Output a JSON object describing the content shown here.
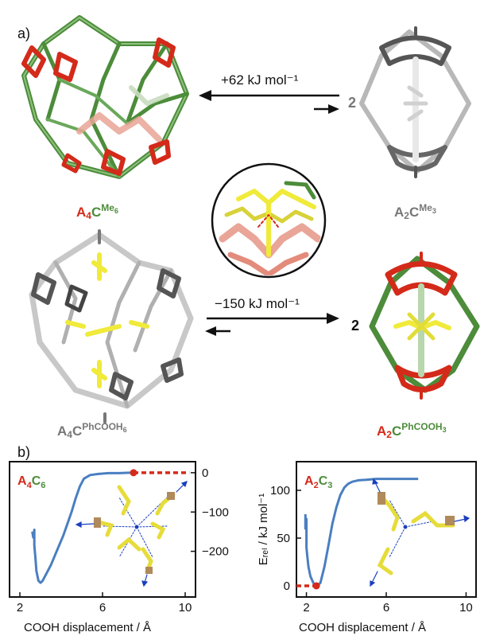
{
  "panel_a": {
    "letter": "a)",
    "reaction_top": {
      "energy": "+62 kJ mol⁻¹",
      "coefficient": "2",
      "left_label": {
        "main_a": "A",
        "main_a_sub": "4",
        "main_c": "C",
        "sup": "Me",
        "sup_sub": "6"
      },
      "right_label": {
        "main_a": "A",
        "main_a_sub": "2",
        "main_c": "C",
        "sup": "Me",
        "sup_sub": "3"
      }
    },
    "reaction_bottom": {
      "energy": "−150 kJ mol⁻¹",
      "coefficient": "2",
      "left_label": {
        "main_a": "A",
        "main_a_sub": "4",
        "main_c": "C",
        "sup": "PhCOOH",
        "sup_sub": "6"
      },
      "right_label": {
        "main_a": "A",
        "main_a_sub": "2",
        "main_c": "C",
        "sup": "PhCOOH",
        "sup_sub": "3"
      }
    }
  },
  "panel_b": {
    "letter": "b)",
    "colors": {
      "curve": "#4a7fc1",
      "reference": "#d42a1a",
      "green": "#4c8c3a",
      "red": "#d42a1a",
      "yellow": "#f0ea3a",
      "gray": "#777777"
    },
    "shared_ylabel": "Eᵣₑₗ / kJ mol⁻¹"
  },
  "chart_data": [
    {
      "type": "line",
      "tag": {
        "a": "A",
        "a_sub": "4",
        "c": "C",
        "c_sub": "6"
      },
      "xlabel": "COOH displacement / Å",
      "ylabel": "",
      "xlim": [
        1.5,
        10.5
      ],
      "ylim": [
        -300,
        20
      ],
      "xticks": [
        "2",
        "6",
        "10"
      ],
      "yticks": [
        "0",
        "−100",
        "−200"
      ],
      "y_axis_side": "right",
      "series": [
        {
          "x": [
            2.6,
            2.65,
            2.7,
            2.7,
            2.75,
            2.8,
            2.9,
            3.0,
            3.1,
            3.3,
            3.5,
            3.7,
            3.9,
            4.1,
            4.3,
            4.5,
            4.7,
            4.9,
            5.1,
            5.4,
            5.8,
            6.3,
            6.8,
            7.3,
            7.5
          ],
          "y": [
            -150,
            -165,
            -145,
            -185,
            -215,
            -250,
            -275,
            -280,
            -275,
            -255,
            -235,
            -210,
            -185,
            -160,
            -130,
            -100,
            -65,
            -35,
            -15,
            -6,
            -3,
            -1,
            -1,
            0,
            0
          ]
        }
      ],
      "reference": {
        "x": [
          7.5,
          10.2
        ],
        "y": [
          0,
          0
        ],
        "marker": "point at start"
      }
    },
    {
      "type": "line",
      "tag": {
        "a": "A",
        "a_sub": "2",
        "c": "C",
        "c_sub": "3"
      },
      "xlabel": "COOH displacement / Å",
      "ylabel": "Eᵣₑₗ / kJ mol⁻¹",
      "xlim": [
        1.5,
        10.5
      ],
      "ylim": [
        -5,
        120
      ],
      "xticks": [
        "2",
        "6",
        "10"
      ],
      "yticks": [
        "0",
        "50",
        "100"
      ],
      "y_axis_side": "left",
      "series": [
        {
          "x": [
            1.95,
            1.95,
            2.0,
            2.0,
            2.05,
            2.1,
            2.2,
            2.35,
            2.5,
            2.7,
            2.9,
            3.1,
            3.3,
            3.5,
            3.7,
            3.9,
            4.1,
            4.3,
            4.6,
            5.0,
            5.5,
            6.0,
            7.0,
            7.6
          ],
          "y": [
            75,
            60,
            70,
            40,
            30,
            20,
            10,
            3,
            0,
            3,
            20,
            42,
            65,
            82,
            95,
            103,
            107,
            109,
            110.5,
            111,
            112,
            112,
            112,
            112
          ]
        }
      ],
      "reference": {
        "x": [
          1.5,
          2.5
        ],
        "y": [
          0,
          0
        ],
        "marker": "point at end"
      }
    }
  ]
}
